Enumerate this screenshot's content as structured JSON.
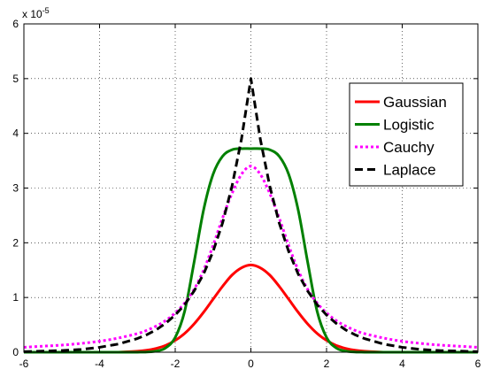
{
  "chart_data": {
    "type": "line",
    "title": "",
    "xlabel": "",
    "ylabel": "",
    "xlim": [
      -6,
      6
    ],
    "ylim": [
      0,
      6
    ],
    "y_multiplier_label": "x 10",
    "y_multiplier_exponent": "-5",
    "grid": true,
    "legend_placement": "top-right",
    "x_ticks": [
      {
        "value": -6,
        "label": "-6"
      },
      {
        "value": -4,
        "label": "-4"
      },
      {
        "value": -2,
        "label": "-2"
      },
      {
        "value": 0,
        "label": "0"
      },
      {
        "value": 2,
        "label": "2"
      },
      {
        "value": 4,
        "label": "4"
      },
      {
        "value": 6,
        "label": "6"
      }
    ],
    "y_ticks": [
      {
        "value": 0,
        "label": "0"
      },
      {
        "value": 1,
        "label": "1"
      },
      {
        "value": 2,
        "label": "2"
      },
      {
        "value": 3,
        "label": "3"
      },
      {
        "value": 4,
        "label": "4"
      },
      {
        "value": 5,
        "label": "5"
      },
      {
        "value": 6,
        "label": "6"
      }
    ],
    "x": [
      -6,
      -5.5,
      -5,
      -4.5,
      -4,
      -3.5,
      -3,
      -2.75,
      -2.5,
      -2.25,
      -2,
      -1.75,
      -1.5,
      -1.25,
      -1,
      -0.75,
      -0.5,
      -0.25,
      0,
      0.25,
      0.5,
      0.75,
      1,
      1.25,
      1.5,
      1.75,
      2,
      2.25,
      2.5,
      2.75,
      3,
      3.5,
      4,
      4.5,
      5,
      5.5,
      6
    ],
    "series": [
      {
        "name": "Gaussian",
        "color": "#ff0000",
        "dash": "solid",
        "values": [
          0,
          0,
          0,
          0,
          0,
          0.001,
          0.018,
          0.036,
          0.07,
          0.126,
          0.216,
          0.344,
          0.518,
          0.731,
          0.968,
          1.203,
          1.409,
          1.542,
          1.596,
          1.542,
          1.409,
          1.203,
          0.968,
          0.731,
          0.518,
          0.344,
          0.216,
          0.126,
          0.07,
          0.036,
          0.018,
          0.001,
          0,
          0,
          0,
          0,
          0
        ],
        "values_scaled_note": ""
      },
      {
        "name": "Logistic",
        "color": "#008000",
        "dash": "solid",
        "values": [
          0,
          0,
          0,
          0,
          0,
          0,
          0.001,
          0.004,
          0.02,
          0.08,
          0.27,
          0.75,
          1.65,
          2.6,
          3.25,
          3.58,
          3.7,
          3.72,
          3.72,
          3.72,
          3.7,
          3.58,
          3.25,
          2.6,
          1.65,
          0.75,
          0.27,
          0.08,
          0.02,
          0.004,
          0.001,
          0,
          0,
          0,
          0,
          0,
          0
        ]
      },
      {
        "name": "Cauchy",
        "color": "#ff00ff",
        "dash": "dotted",
        "values": [
          0.09,
          0.11,
          0.13,
          0.16,
          0.2,
          0.26,
          0.34,
          0.4,
          0.48,
          0.58,
          0.72,
          0.9,
          1.15,
          1.5,
          1.95,
          2.45,
          2.9,
          3.25,
          3.4,
          3.25,
          2.9,
          2.45,
          1.95,
          1.5,
          1.15,
          0.9,
          0.72,
          0.58,
          0.48,
          0.4,
          0.34,
          0.26,
          0.2,
          0.16,
          0.13,
          0.11,
          0.09
        ]
      },
      {
        "name": "Laplace",
        "color": "#000000",
        "dash": "dashed",
        "values": [
          0.01,
          0.02,
          0.03,
          0.05,
          0.09,
          0.15,
          0.25,
          0.32,
          0.41,
          0.53,
          0.68,
          0.87,
          1.12,
          1.43,
          1.84,
          2.36,
          3.03,
          3.89,
          5.0,
          3.89,
          3.03,
          2.36,
          1.84,
          1.43,
          1.12,
          0.87,
          0.68,
          0.53,
          0.41,
          0.32,
          0.25,
          0.15,
          0.09,
          0.05,
          0.03,
          0.02,
          0.01
        ]
      }
    ]
  }
}
